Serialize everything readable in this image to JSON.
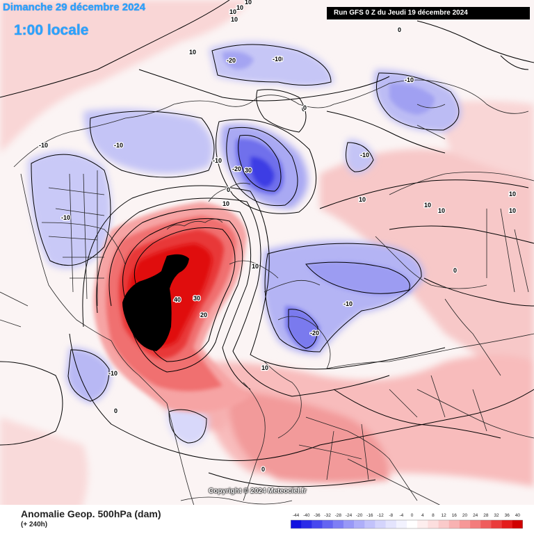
{
  "header": {
    "date": "Dimanche 29 décembre 2024",
    "local_time": "1:00 locale",
    "run": "Run GFS 0 Z du Jeudi 19 décembre 2024"
  },
  "footer": {
    "title": "Anomalie Geop. 500hPa (dam)",
    "lead": "(+ 240h)"
  },
  "copyright": "Copyright © 2024 Meteociel.fr",
  "scale": {
    "ticks": [
      "-44",
      "-40",
      "-36",
      "-32",
      "-28",
      "-24",
      "-20",
      "-16",
      "-12",
      "-8",
      "-4",
      "0",
      "4",
      "8",
      "12",
      "16",
      "20",
      "24",
      "28",
      "32",
      "36",
      "40"
    ],
    "colors": [
      "#1212e0",
      "#2c2ce8",
      "#4848ef",
      "#6464f2",
      "#7e7ef5",
      "#9898f7",
      "#aeaef9",
      "#c2c2fb",
      "#d4d4fc",
      "#e4e4fd",
      "#f2f2fe",
      "#ffffff",
      "#fdeeee",
      "#fcdede",
      "#facaca",
      "#f8b2b2",
      "#f69898",
      "#f37c7c",
      "#ef5c5c",
      "#ea3c3c",
      "#e41c1c",
      "#d00000"
    ]
  },
  "contour_labels": [
    {
      "text": "10"
    },
    {
      "text": "10"
    },
    {
      "text": "10"
    },
    {
      "text": "10"
    },
    {
      "text": "-20"
    },
    {
      "text": "-10"
    },
    {
      "text": "0"
    },
    {
      "text": "-10"
    },
    {
      "text": "-10"
    },
    {
      "text": "-10"
    },
    {
      "text": "-10"
    },
    {
      "text": "-20"
    },
    {
      "text": "30"
    },
    {
      "text": "-10"
    },
    {
      "text": "0"
    },
    {
      "text": "-10"
    },
    {
      "text": "10"
    },
    {
      "text": "10"
    },
    {
      "text": "10"
    },
    {
      "text": "10"
    },
    {
      "text": "-10"
    },
    {
      "text": "10"
    },
    {
      "text": "40"
    },
    {
      "text": "30"
    },
    {
      "text": "20"
    },
    {
      "text": "10"
    },
    {
      "text": "0"
    },
    {
      "text": "-10"
    },
    {
      "text": "-20"
    },
    {
      "text": "10"
    },
    {
      "text": "-10"
    },
    {
      "text": "0"
    },
    {
      "text": "0"
    },
    {
      "text": "10"
    },
    {
      "text": "0"
    },
    {
      "text": "10"
    },
    {
      "text": "0"
    }
  ]
}
